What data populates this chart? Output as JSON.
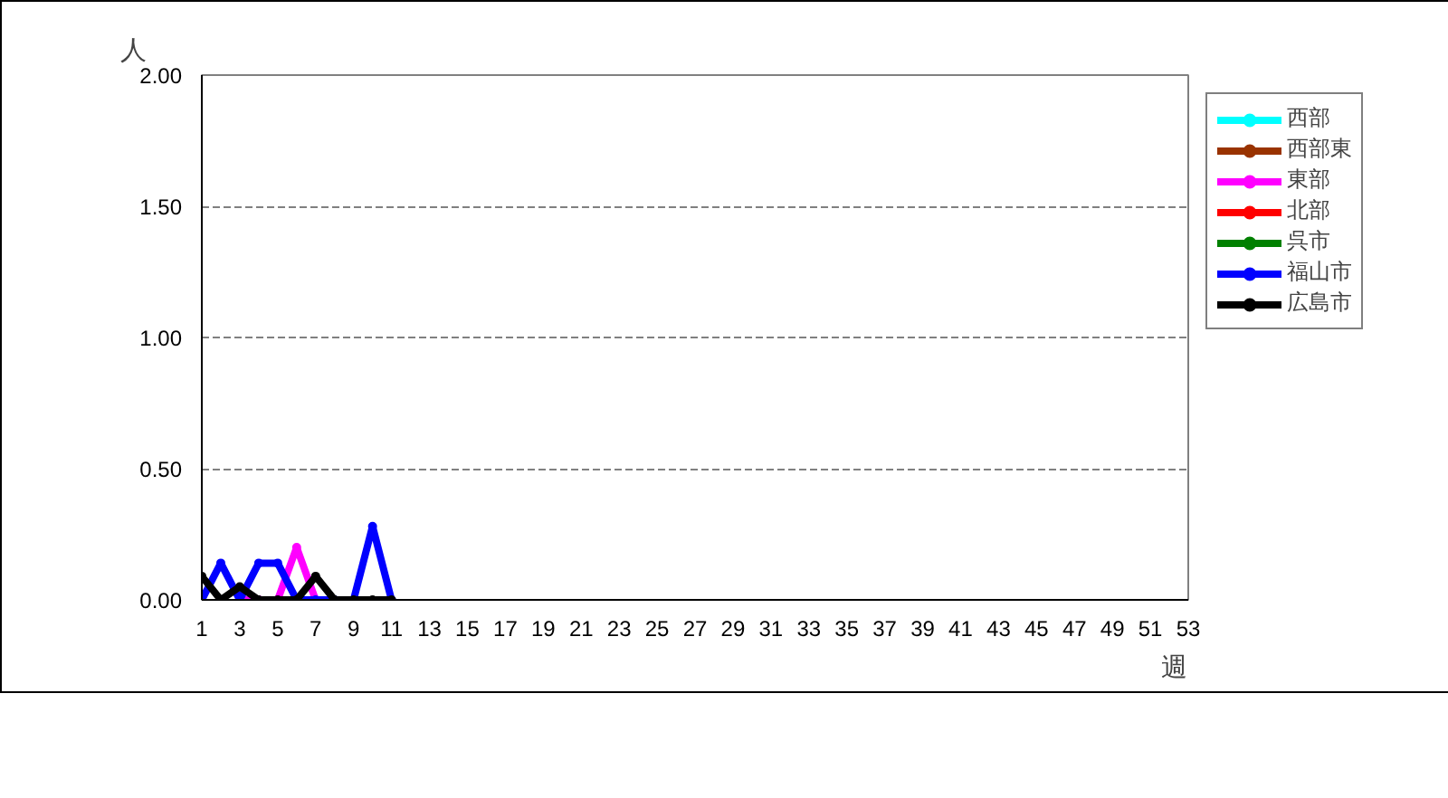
{
  "chart_data": {
    "type": "line",
    "ylabel": "人",
    "xlabel": "週",
    "x": [
      1,
      2,
      3,
      4,
      5,
      6,
      7,
      8,
      9,
      10,
      11
    ],
    "series": [
      {
        "name": "西部",
        "color": "#00ffff",
        "values": [
          null,
          null,
          null,
          null,
          null,
          null,
          null,
          null,
          null,
          null,
          null
        ]
      },
      {
        "name": "西部東",
        "color": "#993300",
        "values": [
          null,
          null,
          null,
          null,
          null,
          null,
          null,
          null,
          null,
          null,
          null
        ]
      },
      {
        "name": "東部",
        "color": "#ff00ff",
        "values": [
          null,
          null,
          0,
          0,
          0,
          0.2,
          0,
          null,
          null,
          null,
          null
        ]
      },
      {
        "name": "北部",
        "color": "#ff0000",
        "values": [
          null,
          null,
          null,
          null,
          null,
          null,
          null,
          null,
          null,
          null,
          null
        ]
      },
      {
        "name": "呉市",
        "color": "#008000",
        "values": [
          null,
          null,
          null,
          null,
          null,
          null,
          null,
          null,
          null,
          null,
          null
        ]
      },
      {
        "name": "福山市",
        "color": "#0000ff",
        "values": [
          0,
          0.14,
          0,
          0.14,
          0.14,
          0,
          0,
          0,
          0,
          0.28,
          0
        ]
      },
      {
        "name": "広島市",
        "color": "#000000",
        "values": [
          0.09,
          0,
          0.05,
          0,
          0,
          0,
          0.09,
          0,
          0,
          0,
          0
        ]
      }
    ],
    "xlim": [
      1,
      53
    ],
    "xticks": [
      1,
      3,
      5,
      7,
      9,
      11,
      13,
      15,
      17,
      19,
      21,
      23,
      25,
      27,
      29,
      31,
      33,
      35,
      37,
      39,
      41,
      43,
      45,
      47,
      49,
      51,
      53
    ],
    "ylim": [
      0,
      2
    ],
    "yticks": [
      {
        "value": 0,
        "label": "0.00"
      },
      {
        "value": 0.5,
        "label": "0.50"
      },
      {
        "value": 1,
        "label": "1.00"
      },
      {
        "value": 1.5,
        "label": "1.50"
      },
      {
        "value": 2,
        "label": "2.00"
      }
    ],
    "grid": "y",
    "legend": "right",
    "marker": "circle",
    "line_style": "solid"
  }
}
